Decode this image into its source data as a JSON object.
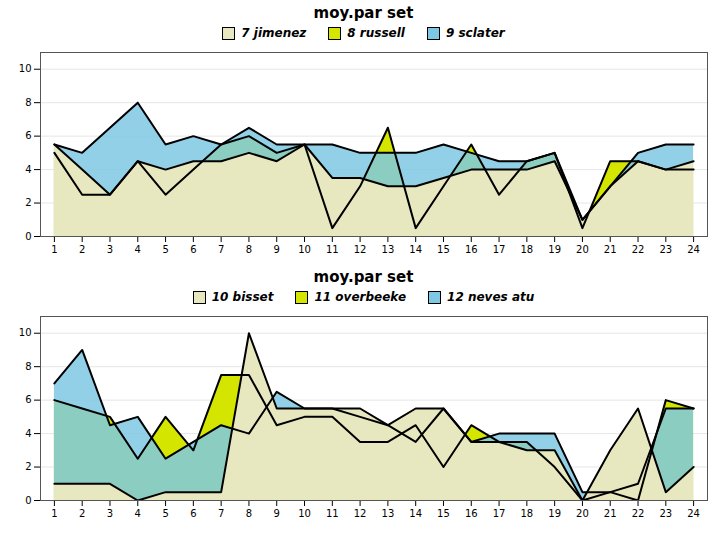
{
  "chart_data": [
    {
      "type": "area",
      "title": "moy.par set",
      "x": [
        1,
        2,
        3,
        4,
        5,
        6,
        7,
        8,
        9,
        10,
        11,
        12,
        13,
        14,
        15,
        16,
        17,
        18,
        19,
        20,
        21,
        22,
        23,
        24
      ],
      "series": [
        {
          "name": "7 jimenez",
          "color": "#e8e8c0",
          "values": [
            5.5,
            4.0,
            2.5,
            4.5,
            4.0,
            4.5,
            4.5,
            5.0,
            4.5,
            5.5,
            3.5,
            3.5,
            3.0,
            3.0,
            3.5,
            4.0,
            4.0,
            4.0,
            4.5,
            1.0,
            3.0,
            4.5,
            4.0,
            4.5
          ]
        },
        {
          "name": "8 russell",
          "color": "#d4e600",
          "values": [
            5.0,
            2.5,
            2.5,
            4.5,
            2.5,
            4.0,
            5.5,
            6.0,
            5.0,
            5.5,
            0.5,
            3.0,
            6.5,
            0.5,
            3.0,
            5.5,
            2.5,
            4.5,
            5.0,
            0.5,
            4.5,
            4.5,
            4.0,
            4.0
          ]
        },
        {
          "name": "9 sclater",
          "color": "#7ec8e3",
          "values": [
            5.5,
            5.0,
            6.5,
            8.0,
            5.5,
            6.0,
            5.5,
            6.5,
            5.5,
            5.5,
            5.5,
            5.0,
            5.0,
            5.0,
            5.5,
            5.0,
            4.5,
            4.5,
            5.0,
            1.0,
            3.0,
            5.0,
            5.5,
            5.5
          ]
        }
      ],
      "xlim": [
        0.5,
        24.5
      ],
      "xticks": [
        1,
        2,
        3,
        4,
        5,
        6,
        7,
        8,
        9,
        10,
        11,
        12,
        13,
        14,
        15,
        16,
        17,
        18,
        19,
        20,
        21,
        22,
        23,
        24
      ],
      "ylim": [
        0,
        11
      ],
      "yticks": [
        0,
        2,
        4,
        6,
        8,
        10
      ],
      "grid": true,
      "legend": "top"
    },
    {
      "type": "area",
      "title": "moy.par set",
      "x": [
        1,
        2,
        3,
        4,
        5,
        6,
        7,
        8,
        9,
        10,
        11,
        12,
        13,
        14,
        15,
        16,
        17,
        18,
        19,
        20,
        21,
        22,
        23,
        24
      ],
      "series": [
        {
          "name": "10 bisset",
          "color": "#e8e8c0",
          "values": [
            1.0,
            1.0,
            1.0,
            0.0,
            0.5,
            0.5,
            0.5,
            10.0,
            5.5,
            5.5,
            5.5,
            5.5,
            4.5,
            5.5,
            5.5,
            3.5,
            3.5,
            3.0,
            3.0,
            0.0,
            3.0,
            5.5,
            0.5,
            2.0
          ]
        },
        {
          "name": "11 overbeeke",
          "color": "#d4e600",
          "values": [
            6.0,
            5.5,
            5.0,
            2.5,
            5.0,
            3.0,
            7.5,
            7.5,
            4.5,
            5.0,
            5.0,
            3.5,
            3.5,
            4.5,
            2.0,
            4.5,
            3.5,
            3.5,
            2.0,
            0.0,
            0.5,
            0.0,
            6.0,
            5.5
          ]
        },
        {
          "name": "12 neves atu",
          "color": "#7ec8e3",
          "values": [
            7.0,
            9.0,
            4.5,
            5.0,
            2.5,
            3.5,
            4.5,
            4.0,
            6.5,
            5.5,
            5.5,
            5.0,
            4.5,
            3.5,
            5.5,
            3.5,
            4.0,
            4.0,
            4.0,
            0.5,
            0.5,
            1.0,
            5.5,
            5.5
          ]
        }
      ],
      "xlim": [
        0.5,
        24.5
      ],
      "xticks": [
        1,
        2,
        3,
        4,
        5,
        6,
        7,
        8,
        9,
        10,
        11,
        12,
        13,
        14,
        15,
        16,
        17,
        18,
        19,
        20,
        21,
        22,
        23,
        24
      ],
      "ylim": [
        0,
        11
      ],
      "yticks": [
        0,
        2,
        4,
        6,
        8,
        10
      ],
      "grid": true,
      "legend": "top"
    }
  ]
}
